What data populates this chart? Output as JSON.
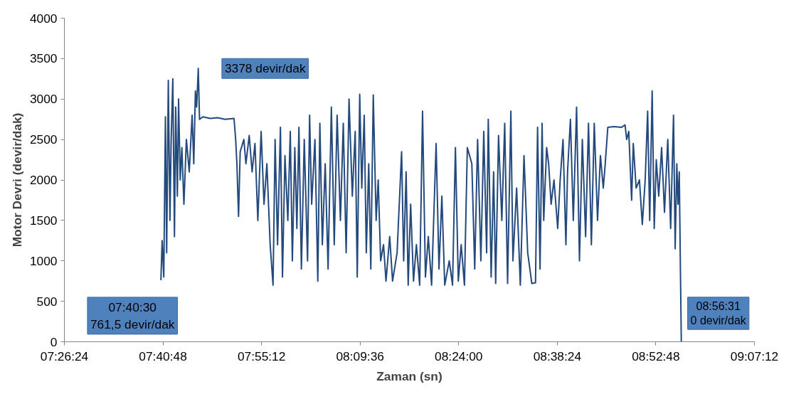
{
  "chart_data": {
    "type": "line",
    "xlabel": "Zaman (sn)",
    "ylabel": "Motor Devri (devir/dak)",
    "xlim": [
      7.44,
      9.12
    ],
    "xticks": [
      {
        "value": 7.44,
        "label": "07:26:24"
      },
      {
        "value": 7.68,
        "label": "07:40:48"
      },
      {
        "value": 7.92,
        "label": "07:55:12"
      },
      {
        "value": 8.16,
        "label": "08:09:36"
      },
      {
        "value": 8.4,
        "label": "08:24:00"
      },
      {
        "value": 8.64,
        "label": "08:38:24"
      },
      {
        "value": 8.88,
        "label": "08:52:48"
      },
      {
        "value": 9.12,
        "label": "09:07:12"
      }
    ],
    "ylim": [
      0,
      4000
    ],
    "yticks": [
      0,
      500,
      1000,
      1500,
      2000,
      2500,
      3000,
      3500,
      4000
    ],
    "grid": false,
    "marker": "none",
    "line_style": "solid",
    "annotations": [
      {
        "text": "07:40:30\n761,5 devir/dak",
        "x": 7.675,
        "y": 761.5
      },
      {
        "text": "3378 devir/dak",
        "x": 7.766,
        "y": 3378
      },
      {
        "text": "08:56:31\n0 devir/dak",
        "x": 8.942,
        "y": 0
      }
    ],
    "series": [
      {
        "color": "#23497d",
        "x": [
          7.675,
          7.678,
          7.682,
          7.686,
          7.689,
          7.693,
          7.697,
          7.7,
          7.704,
          7.708,
          7.711,
          7.715,
          7.718,
          7.722,
          7.726,
          7.731,
          7.737,
          7.744,
          7.751,
          7.755,
          7.759,
          7.762,
          7.766,
          7.769,
          7.777,
          7.795,
          7.813,
          7.831,
          7.853,
          7.857,
          7.86,
          7.864,
          7.868,
          7.877,
          7.882,
          7.89,
          7.897,
          7.904,
          7.911,
          7.919,
          7.926,
          7.933,
          7.941,
          7.948,
          7.953,
          7.959,
          7.966,
          7.971,
          7.977,
          7.984,
          7.99,
          7.995,
          8.001,
          8.006,
          8.011,
          8.017,
          8.024,
          8.032,
          8.037,
          8.042,
          8.05,
          8.057,
          8.062,
          8.068,
          8.075,
          8.082,
          8.09,
          8.097,
          8.104,
          8.112,
          8.119,
          8.126,
          8.133,
          8.141,
          8.148,
          8.153,
          8.159,
          8.164,
          8.17,
          8.175,
          8.181,
          8.186,
          8.192,
          8.199,
          8.204,
          8.21,
          8.217,
          8.223,
          8.232,
          8.239,
          8.25,
          8.261,
          8.266,
          8.272,
          8.277,
          8.283,
          8.29,
          8.297,
          8.305,
          8.312,
          8.319,
          8.326,
          8.334,
          8.345,
          8.352,
          8.359,
          8.366,
          8.377,
          8.385,
          8.392,
          8.399,
          8.406,
          8.414,
          8.421,
          8.432,
          8.439,
          8.446,
          8.454,
          8.461,
          8.468,
          8.472,
          8.479,
          8.485,
          8.49,
          8.497,
          8.505,
          8.512,
          8.519,
          8.527,
          8.532,
          8.541,
          8.55,
          8.559,
          8.568,
          8.578,
          8.587,
          8.592,
          8.598,
          8.603,
          8.607,
          8.614,
          8.619,
          8.625,
          8.632,
          8.641,
          8.647,
          8.654,
          8.661,
          8.665,
          8.672,
          8.679,
          8.687,
          8.694,
          8.701,
          8.709,
          8.716,
          8.723,
          8.73,
          8.738,
          8.745,
          8.752,
          8.756,
          8.763,
          8.778,
          8.796,
          8.805,
          8.809,
          8.814,
          8.821,
          8.825,
          8.832,
          8.84,
          8.847,
          8.854,
          8.86,
          8.865,
          8.871,
          8.876,
          8.881,
          8.887,
          8.894,
          8.901,
          8.909,
          8.916,
          8.923,
          8.927,
          8.931,
          8.934,
          8.937,
          8.94,
          8.942
        ],
        "values": [
          761.5,
          1250,
          800,
          2780,
          1100,
          3230,
          1500,
          2500,
          3250,
          1300,
          2900,
          1800,
          3000,
          2000,
          2400,
          1700,
          2500,
          2100,
          2800,
          2200,
          3100,
          2900,
          3378,
          2750,
          2780,
          2760,
          2770,
          2750,
          2760,
          2500,
          2200,
          1550,
          2350,
          2500,
          2200,
          2550,
          2100,
          2450,
          1500,
          2600,
          1700,
          2200,
          1200,
          700,
          2500,
          1200,
          2650,
          800,
          2300,
          1500,
          2600,
          1000,
          2400,
          1400,
          2650,
          900,
          2500,
          1000,
          2800,
          1700,
          2500,
          750,
          2700,
          1200,
          2200,
          900,
          2900,
          1200,
          2800,
          1500,
          2700,
          1100,
          3000,
          1800,
          2600,
          800,
          3060,
          1900,
          2800,
          1100,
          2200,
          900,
          3050,
          1500,
          2000,
          1000,
          1200,
          750,
          1300,
          750,
          1100,
          2350,
          1000,
          2100,
          700,
          1700,
          750,
          1200,
          700,
          2850,
          800,
          1300,
          700,
          2450,
          900,
          1800,
          700,
          1000,
          700,
          2400,
          750,
          1200,
          700,
          2400,
          2200,
          900,
          2500,
          1000,
          2600,
          1100,
          2750,
          800,
          2100,
          720,
          2550,
          1500,
          2700,
          720,
          2850,
          1000,
          1900,
          700,
          2300,
          1100,
          720,
          730,
          2650,
          900,
          2700,
          1500,
          2400,
          2200,
          1700,
          2000,
          1400,
          2000,
          2500,
          1200,
          2100,
          2750,
          1500,
          2900,
          1000,
          2500,
          1300,
          2700,
          1200,
          2700,
          1500,
          2300,
          1900,
          2150,
          2650,
          2660,
          2650,
          2680,
          2500,
          2600,
          1750,
          2450,
          1900,
          2000,
          1450,
          2000,
          2850,
          1500,
          3100,
          1400,
          2250,
          1800,
          2400,
          1600,
          2500,
          1400,
          2800,
          1150,
          2200,
          1700,
          2100,
          800,
          0
        ]
      }
    ]
  }
}
